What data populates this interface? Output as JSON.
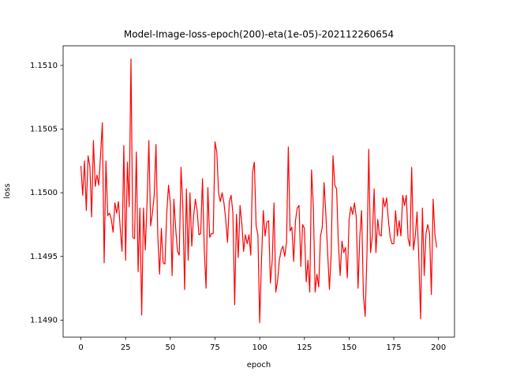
{
  "chart_data": {
    "type": "line",
    "title": "Model-Image-loss-epoch(200)-eta(1e-05)-202112260654",
    "xlabel": "epoch",
    "ylabel": "loss",
    "x": [
      0,
      1,
      2,
      3,
      4,
      5,
      6,
      7,
      8,
      9,
      10,
      11,
      12,
      13,
      14,
      15,
      16,
      17,
      18,
      19,
      20,
      21,
      22,
      23,
      24,
      25,
      26,
      27,
      28,
      29,
      30,
      31,
      32,
      33,
      34,
      35,
      36,
      37,
      38,
      39,
      40,
      41,
      42,
      43,
      44,
      45,
      46,
      47,
      48,
      49,
      50,
      51,
      52,
      53,
      54,
      55,
      56,
      57,
      58,
      59,
      60,
      61,
      62,
      63,
      64,
      65,
      66,
      67,
      68,
      69,
      70,
      71,
      72,
      73,
      74,
      75,
      76,
      77,
      78,
      79,
      80,
      81,
      82,
      83,
      84,
      85,
      86,
      87,
      88,
      89,
      90,
      91,
      92,
      93,
      94,
      95,
      96,
      97,
      98,
      99,
      100,
      101,
      102,
      103,
      104,
      105,
      106,
      107,
      108,
      109,
      110,
      111,
      112,
      113,
      114,
      115,
      116,
      117,
      118,
      119,
      120,
      121,
      122,
      123,
      124,
      125,
      126,
      127,
      128,
      129,
      130,
      131,
      132,
      133,
      134,
      135,
      136,
      137,
      138,
      139,
      140,
      141,
      142,
      143,
      144,
      145,
      146,
      147,
      148,
      149,
      150,
      151,
      152,
      153,
      154,
      155,
      156,
      157,
      158,
      159,
      160,
      161,
      162,
      163,
      164,
      165,
      166,
      167,
      168,
      169,
      170,
      171,
      172,
      173,
      174,
      175,
      176,
      177,
      178,
      179,
      180,
      181,
      182,
      183,
      184,
      185,
      186,
      187,
      188,
      189,
      190,
      191,
      192,
      193,
      194,
      195,
      196,
      197,
      198,
      199
    ],
    "series": [
      {
        "name": "loss",
        "color": "#ff0000",
        "values": [
          1.15021,
          1.14998,
          1.15025,
          1.14986,
          1.15029,
          1.15021,
          1.14981,
          1.15041,
          1.15005,
          1.15014,
          1.15006,
          1.1503,
          1.15055,
          1.14945,
          1.15025,
          1.14982,
          1.14984,
          1.14979,
          1.14969,
          1.14992,
          1.14984,
          1.14993,
          1.14972,
          1.14954,
          1.15037,
          1.14947,
          1.15024,
          1.14989,
          1.15105,
          1.14965,
          1.14964,
          1.15032,
          1.14938,
          1.14988,
          1.14904,
          1.14988,
          1.14955,
          1.14992,
          1.15041,
          1.14974,
          1.14984,
          1.14998,
          1.15038,
          1.14966,
          1.14936,
          1.14972,
          1.14945,
          1.14944,
          1.14984,
          1.15006,
          1.14992,
          1.14935,
          1.14995,
          1.14972,
          1.14954,
          1.14951,
          1.1502,
          1.14989,
          1.14924,
          1.15003,
          1.14947,
          1.15,
          1.14958,
          1.14981,
          1.14995,
          1.14986,
          1.14967,
          1.14968,
          1.15011,
          1.14955,
          1.14925,
          1.15004,
          1.14965,
          1.14968,
          1.14968,
          1.1504,
          1.15032,
          1.15,
          1.14993,
          1.15,
          1.14992,
          1.14979,
          1.14961,
          1.14993,
          1.14998,
          1.14984,
          1.14912,
          1.14983,
          1.14949,
          1.1499,
          1.14976,
          1.14954,
          1.14967,
          1.1496,
          1.14967,
          1.14951,
          1.15016,
          1.15024,
          1.14974,
          1.14967,
          1.14898,
          1.14947,
          1.14986,
          1.14966,
          1.14977,
          1.14978,
          1.14929,
          1.14947,
          1.14992,
          1.14922,
          1.14931,
          1.14947,
          1.14955,
          1.14958,
          1.1495,
          1.14961,
          1.15036,
          1.1497,
          1.14973,
          1.14946,
          1.14978,
          1.14988,
          1.1499,
          1.14942,
          1.14975,
          1.14972,
          1.1493,
          1.14947,
          1.14922,
          1.15018,
          1.14989,
          1.14922,
          1.14936,
          1.14926,
          1.14966,
          1.14973,
          1.15008,
          1.14983,
          1.14953,
          1.14924,
          1.14953,
          1.15029,
          1.15006,
          1.15003,
          1.1496,
          1.14935,
          1.14962,
          1.14953,
          1.14957,
          1.14933,
          1.14979,
          1.14989,
          1.14983,
          1.14992,
          1.14981,
          1.14925,
          1.14966,
          1.14986,
          1.14919,
          1.14903,
          1.14953,
          1.15034,
          1.14953,
          1.14966,
          1.15003,
          1.14953,
          1.14979,
          1.14967,
          1.14966,
          1.14996,
          1.14989,
          1.14996,
          1.14978,
          1.14965,
          1.1496,
          1.1496,
          1.14986,
          1.14966,
          1.14978,
          1.14966,
          1.14998,
          1.1499,
          1.14998,
          1.14964,
          1.14958,
          1.1502,
          1.14955,
          1.14966,
          1.14985,
          1.14948,
          1.14901,
          1.14988,
          1.14935,
          1.14968,
          1.14975,
          1.14968,
          1.1492,
          1.14995,
          1.14967,
          1.14957
        ]
      }
    ],
    "xlim": [
      -9.95,
      208.95
    ],
    "xticks": [
      0,
      25,
      50,
      75,
      100,
      125,
      150,
      175,
      200
    ],
    "ylim": [
      1.148866,
      1.151154
    ],
    "yticks": [
      {
        "value": 1.149,
        "label": "1.1490"
      },
      1.1495,
      {
        "value": 1.15,
        "label": "1.1500"
      },
      1.1505,
      {
        "value": 1.151,
        "label": "1.1510"
      }
    ],
    "grid": false
  }
}
